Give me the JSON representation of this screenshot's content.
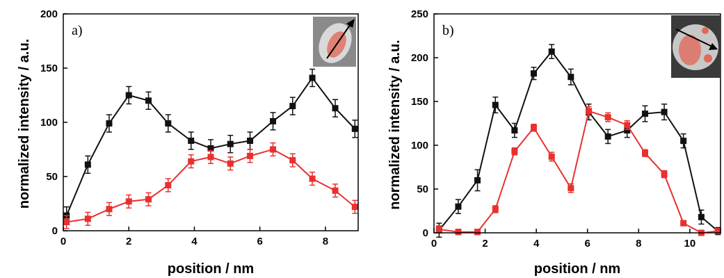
{
  "chart_data": [
    {
      "type": "line",
      "panel_label": "a)",
      "xlabel": "position / nm",
      "ylabel": "normalized intensity / a.u.",
      "x": [
        0.1,
        0.75,
        1.4,
        2.0,
        2.6,
        3.2,
        3.9,
        4.5,
        5.1,
        5.7,
        6.4,
        7.0,
        7.6,
        8.3,
        8.9
      ],
      "xlim": [
        0,
        9
      ],
      "xticks": [
        0,
        2,
        4,
        6,
        8
      ],
      "ylim": [
        0,
        200
      ],
      "yticks": [
        0,
        50,
        100,
        150,
        200
      ],
      "series": [
        {
          "color": "#111111",
          "values": [
            14,
            61,
            99,
            125,
            120,
            99,
            83,
            76,
            80,
            83,
            101,
            115,
            141,
            113,
            94
          ],
          "errors": [
            8,
            8,
            8,
            8,
            8,
            8,
            8,
            8,
            8,
            8,
            8,
            8,
            8,
            8,
            8
          ]
        },
        {
          "color": "#e8312f",
          "values": [
            8,
            11,
            20,
            27,
            29,
            42,
            64,
            68,
            62,
            69,
            75,
            65,
            48,
            37,
            22
          ],
          "errors": [
            6,
            6,
            6,
            6,
            6,
            6,
            6,
            6,
            6,
            6,
            6,
            6,
            6,
            6,
            6
          ]
        }
      ]
    },
    {
      "type": "line",
      "panel_label": "b)",
      "xlabel": "position / nm",
      "ylabel": "normalized intensity / a.u.",
      "x": [
        0.2,
        0.95,
        1.7,
        2.4,
        3.15,
        3.9,
        4.6,
        5.35,
        6.05,
        6.8,
        7.55,
        8.25,
        9.0,
        9.75,
        10.45,
        11.1
      ],
      "xlim": [
        0,
        11.2
      ],
      "xticks": [
        0,
        2,
        4,
        6,
        8,
        10
      ],
      "ylim": [
        0,
        250
      ],
      "yticks": [
        0,
        50,
        100,
        150,
        200,
        250
      ],
      "series": [
        {
          "color": "#111111",
          "values": [
            3,
            30,
            60,
            146,
            117,
            182,
            207,
            178,
            138,
            110,
            117,
            136,
            138,
            105,
            18,
            2
          ],
          "errors": [
            8,
            8,
            12,
            9,
            8,
            7,
            8,
            9,
            9,
            8,
            8,
            9,
            9,
            8,
            8,
            4
          ]
        },
        {
          "color": "#e8312f",
          "values": [
            4,
            1,
            1,
            27,
            93,
            120,
            87,
            51,
            139,
            132,
            123,
            91,
            67,
            11,
            0,
            2
          ],
          "errors": [
            4,
            3,
            3,
            4,
            4,
            4,
            5,
            5,
            5,
            5,
            5,
            4,
            4,
            3,
            3,
            3
          ]
        }
      ]
    }
  ]
}
